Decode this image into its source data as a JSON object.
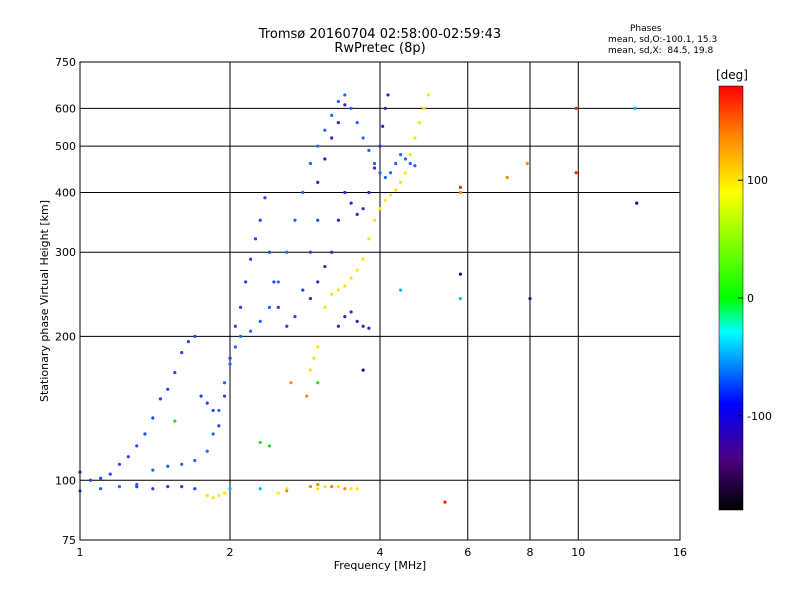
{
  "header": {
    "title_line1": "Tromsø 20160704 02:58:00-02:59:43",
    "title_line2": "RwPretec (8p)",
    "phases_heading": "Phases",
    "phases_stat_o": "mean, sd,O:-100.1, 15.3",
    "phases_stat_x": "mean, sd,X:  84.5, 19.8"
  },
  "colorbar": {
    "label": "[deg]",
    "ticks": [
      "100",
      "0",
      "-100"
    ],
    "tick_values": [
      100,
      0,
      -100
    ],
    "range": [
      -180,
      180
    ]
  },
  "chart_data": {
    "type": "scatter",
    "xlabel": "Frequency [MHz]",
    "ylabel": "Stationary phase Virtual Height [km]",
    "x_scale": "log",
    "y_scale": "log",
    "xlim": [
      1,
      16
    ],
    "ylim": [
      75,
      750
    ],
    "x_ticks": [
      1,
      2,
      4,
      6,
      8,
      10,
      16
    ],
    "x_tick_labels": [
      "1",
      "2",
      "4",
      "6",
      "8",
      "10",
      "16"
    ],
    "y_ticks": [
      75,
      100,
      200,
      300,
      400,
      500,
      600,
      750
    ],
    "y_tick_labels": [
      "75",
      "100",
      "200",
      "300",
      "400",
      "500",
      "600",
      "750"
    ],
    "grid": true,
    "series": [
      {
        "color": "#2244ff",
        "points": [
          [
            1.0,
            104
          ],
          [
            1.05,
            100
          ],
          [
            1.1,
            101
          ],
          [
            1.15,
            103
          ],
          [
            1.2,
            108
          ],
          [
            1.25,
            112
          ],
          [
            1.3,
            118
          ],
          [
            1.35,
            125
          ],
          [
            1.4,
            135
          ],
          [
            1.45,
            148
          ],
          [
            1.5,
            155
          ],
          [
            1.55,
            168
          ],
          [
            1.6,
            185
          ],
          [
            1.65,
            195
          ],
          [
            1.7,
            200
          ],
          [
            1.75,
            150
          ],
          [
            1.8,
            145
          ],
          [
            1.85,
            140
          ],
          [
            1.9,
            130
          ],
          [
            1.95,
            150
          ],
          [
            2.0,
            180
          ],
          [
            2.05,
            210
          ],
          [
            2.1,
            230
          ],
          [
            2.15,
            260
          ],
          [
            2.2,
            290
          ],
          [
            2.25,
            320
          ],
          [
            2.3,
            350
          ],
          [
            2.35,
            390
          ],
          [
            2.4,
            300
          ],
          [
            2.45,
            260
          ],
          [
            2.5,
            230
          ],
          [
            2.6,
            210
          ],
          [
            2.7,
            220
          ],
          [
            2.8,
            250
          ],
          [
            2.9,
            300
          ],
          [
            3.0,
            350
          ],
          [
            1.3,
            97
          ],
          [
            1.4,
            96
          ],
          [
            1.5,
            97
          ],
          [
            1.6,
            97
          ],
          [
            1.7,
            96
          ]
        ]
      },
      {
        "color": "#1f66ff",
        "points": [
          [
            1.0,
            95
          ],
          [
            1.1,
            96
          ],
          [
            1.2,
            97
          ],
          [
            1.3,
            98
          ],
          [
            1.4,
            105
          ],
          [
            1.5,
            107
          ],
          [
            1.6,
            108
          ],
          [
            1.7,
            110
          ],
          [
            1.8,
            115
          ],
          [
            1.85,
            125
          ],
          [
            1.9,
            140
          ],
          [
            1.95,
            160
          ],
          [
            2.0,
            175
          ],
          [
            2.05,
            190
          ],
          [
            2.1,
            200
          ],
          [
            2.2,
            205
          ],
          [
            2.3,
            215
          ],
          [
            2.4,
            230
          ],
          [
            2.5,
            260
          ],
          [
            2.6,
            300
          ],
          [
            2.7,
            350
          ],
          [
            2.8,
            400
          ],
          [
            2.9,
            460
          ],
          [
            3.0,
            500
          ],
          [
            3.1,
            540
          ],
          [
            3.2,
            580
          ],
          [
            3.3,
            620
          ],
          [
            3.4,
            640
          ],
          [
            3.5,
            600
          ],
          [
            3.6,
            560
          ],
          [
            3.7,
            520
          ],
          [
            3.8,
            490
          ],
          [
            3.9,
            460
          ],
          [
            4.0,
            440
          ],
          [
            4.1,
            430
          ],
          [
            4.2,
            440
          ],
          [
            4.3,
            460
          ],
          [
            4.4,
            480
          ],
          [
            4.5,
            470
          ],
          [
            4.6,
            460
          ],
          [
            4.7,
            455
          ]
        ]
      },
      {
        "color": "#3a1fcc",
        "points": [
          [
            2.9,
            240
          ],
          [
            3.0,
            260
          ],
          [
            3.1,
            280
          ],
          [
            3.2,
            300
          ],
          [
            3.3,
            350
          ],
          [
            3.4,
            400
          ],
          [
            3.5,
            380
          ],
          [
            3.6,
            360
          ],
          [
            3.7,
            370
          ],
          [
            3.8,
            400
          ],
          [
            3.9,
            450
          ],
          [
            4.0,
            500
          ],
          [
            4.05,
            550
          ],
          [
            4.1,
            600
          ],
          [
            4.15,
            640
          ],
          [
            3.0,
            420
          ],
          [
            3.1,
            470
          ],
          [
            3.2,
            520
          ],
          [
            3.3,
            560
          ],
          [
            3.4,
            610
          ],
          [
            3.3,
            210
          ],
          [
            3.4,
            220
          ],
          [
            3.5,
            225
          ],
          [
            3.6,
            215
          ],
          [
            3.7,
            210
          ],
          [
            3.8,
            208
          ]
        ]
      },
      {
        "color": "#ffe600",
        "points": [
          [
            1.8,
            93
          ],
          [
            1.85,
            92
          ],
          [
            1.9,
            93
          ],
          [
            1.95,
            94
          ],
          [
            2.5,
            94
          ],
          [
            2.6,
            96
          ],
          [
            3.0,
            96
          ],
          [
            3.1,
            97
          ],
          [
            3.3,
            97
          ],
          [
            3.5,
            96
          ],
          [
            3.6,
            96
          ],
          [
            3.1,
            230
          ],
          [
            3.2,
            245
          ],
          [
            3.3,
            250
          ],
          [
            3.4,
            255
          ],
          [
            3.5,
            265
          ],
          [
            3.6,
            275
          ],
          [
            3.7,
            290
          ],
          [
            3.8,
            320
          ],
          [
            3.9,
            350
          ],
          [
            4.0,
            370
          ],
          [
            4.1,
            385
          ],
          [
            4.2,
            395
          ],
          [
            4.3,
            405
          ],
          [
            4.4,
            420
          ],
          [
            4.5,
            440
          ],
          [
            4.6,
            480
          ],
          [
            4.7,
            520
          ],
          [
            4.8,
            560
          ],
          [
            4.9,
            600
          ],
          [
            5.0,
            640
          ],
          [
            3.0,
            190
          ],
          [
            2.95,
            180
          ],
          [
            2.9,
            170
          ]
        ]
      },
      {
        "color": "#ff8800",
        "points": [
          [
            2.6,
            95
          ],
          [
            2.9,
            97
          ],
          [
            3.0,
            98
          ],
          [
            3.2,
            97
          ],
          [
            3.4,
            96
          ],
          [
            5.8,
            400
          ],
          [
            7.2,
            430
          ],
          [
            7.9,
            460
          ],
          [
            2.65,
            160
          ],
          [
            2.85,
            150
          ]
        ]
      },
      {
        "color": "#ff2200",
        "points": [
          [
            5.8,
            410
          ],
          [
            9.9,
            440
          ],
          [
            9.9,
            600
          ],
          [
            5.4,
            90
          ]
        ]
      },
      {
        "color": "#22dd22",
        "points": [
          [
            2.3,
            120
          ],
          [
            2.4,
            118
          ],
          [
            1.55,
            133
          ],
          [
            3.0,
            160
          ]
        ]
      },
      {
        "color": "#00bbee",
        "points": [
          [
            2.0,
            96
          ],
          [
            2.3,
            96
          ],
          [
            4.4,
            250
          ],
          [
            5.8,
            240
          ],
          [
            13.0,
            600
          ]
        ]
      },
      {
        "color": "#330077",
        "points": [
          [
            5.8,
            270
          ],
          [
            3.7,
            170
          ],
          [
            8.0,
            240
          ],
          [
            13.1,
            380
          ]
        ]
      }
    ]
  }
}
